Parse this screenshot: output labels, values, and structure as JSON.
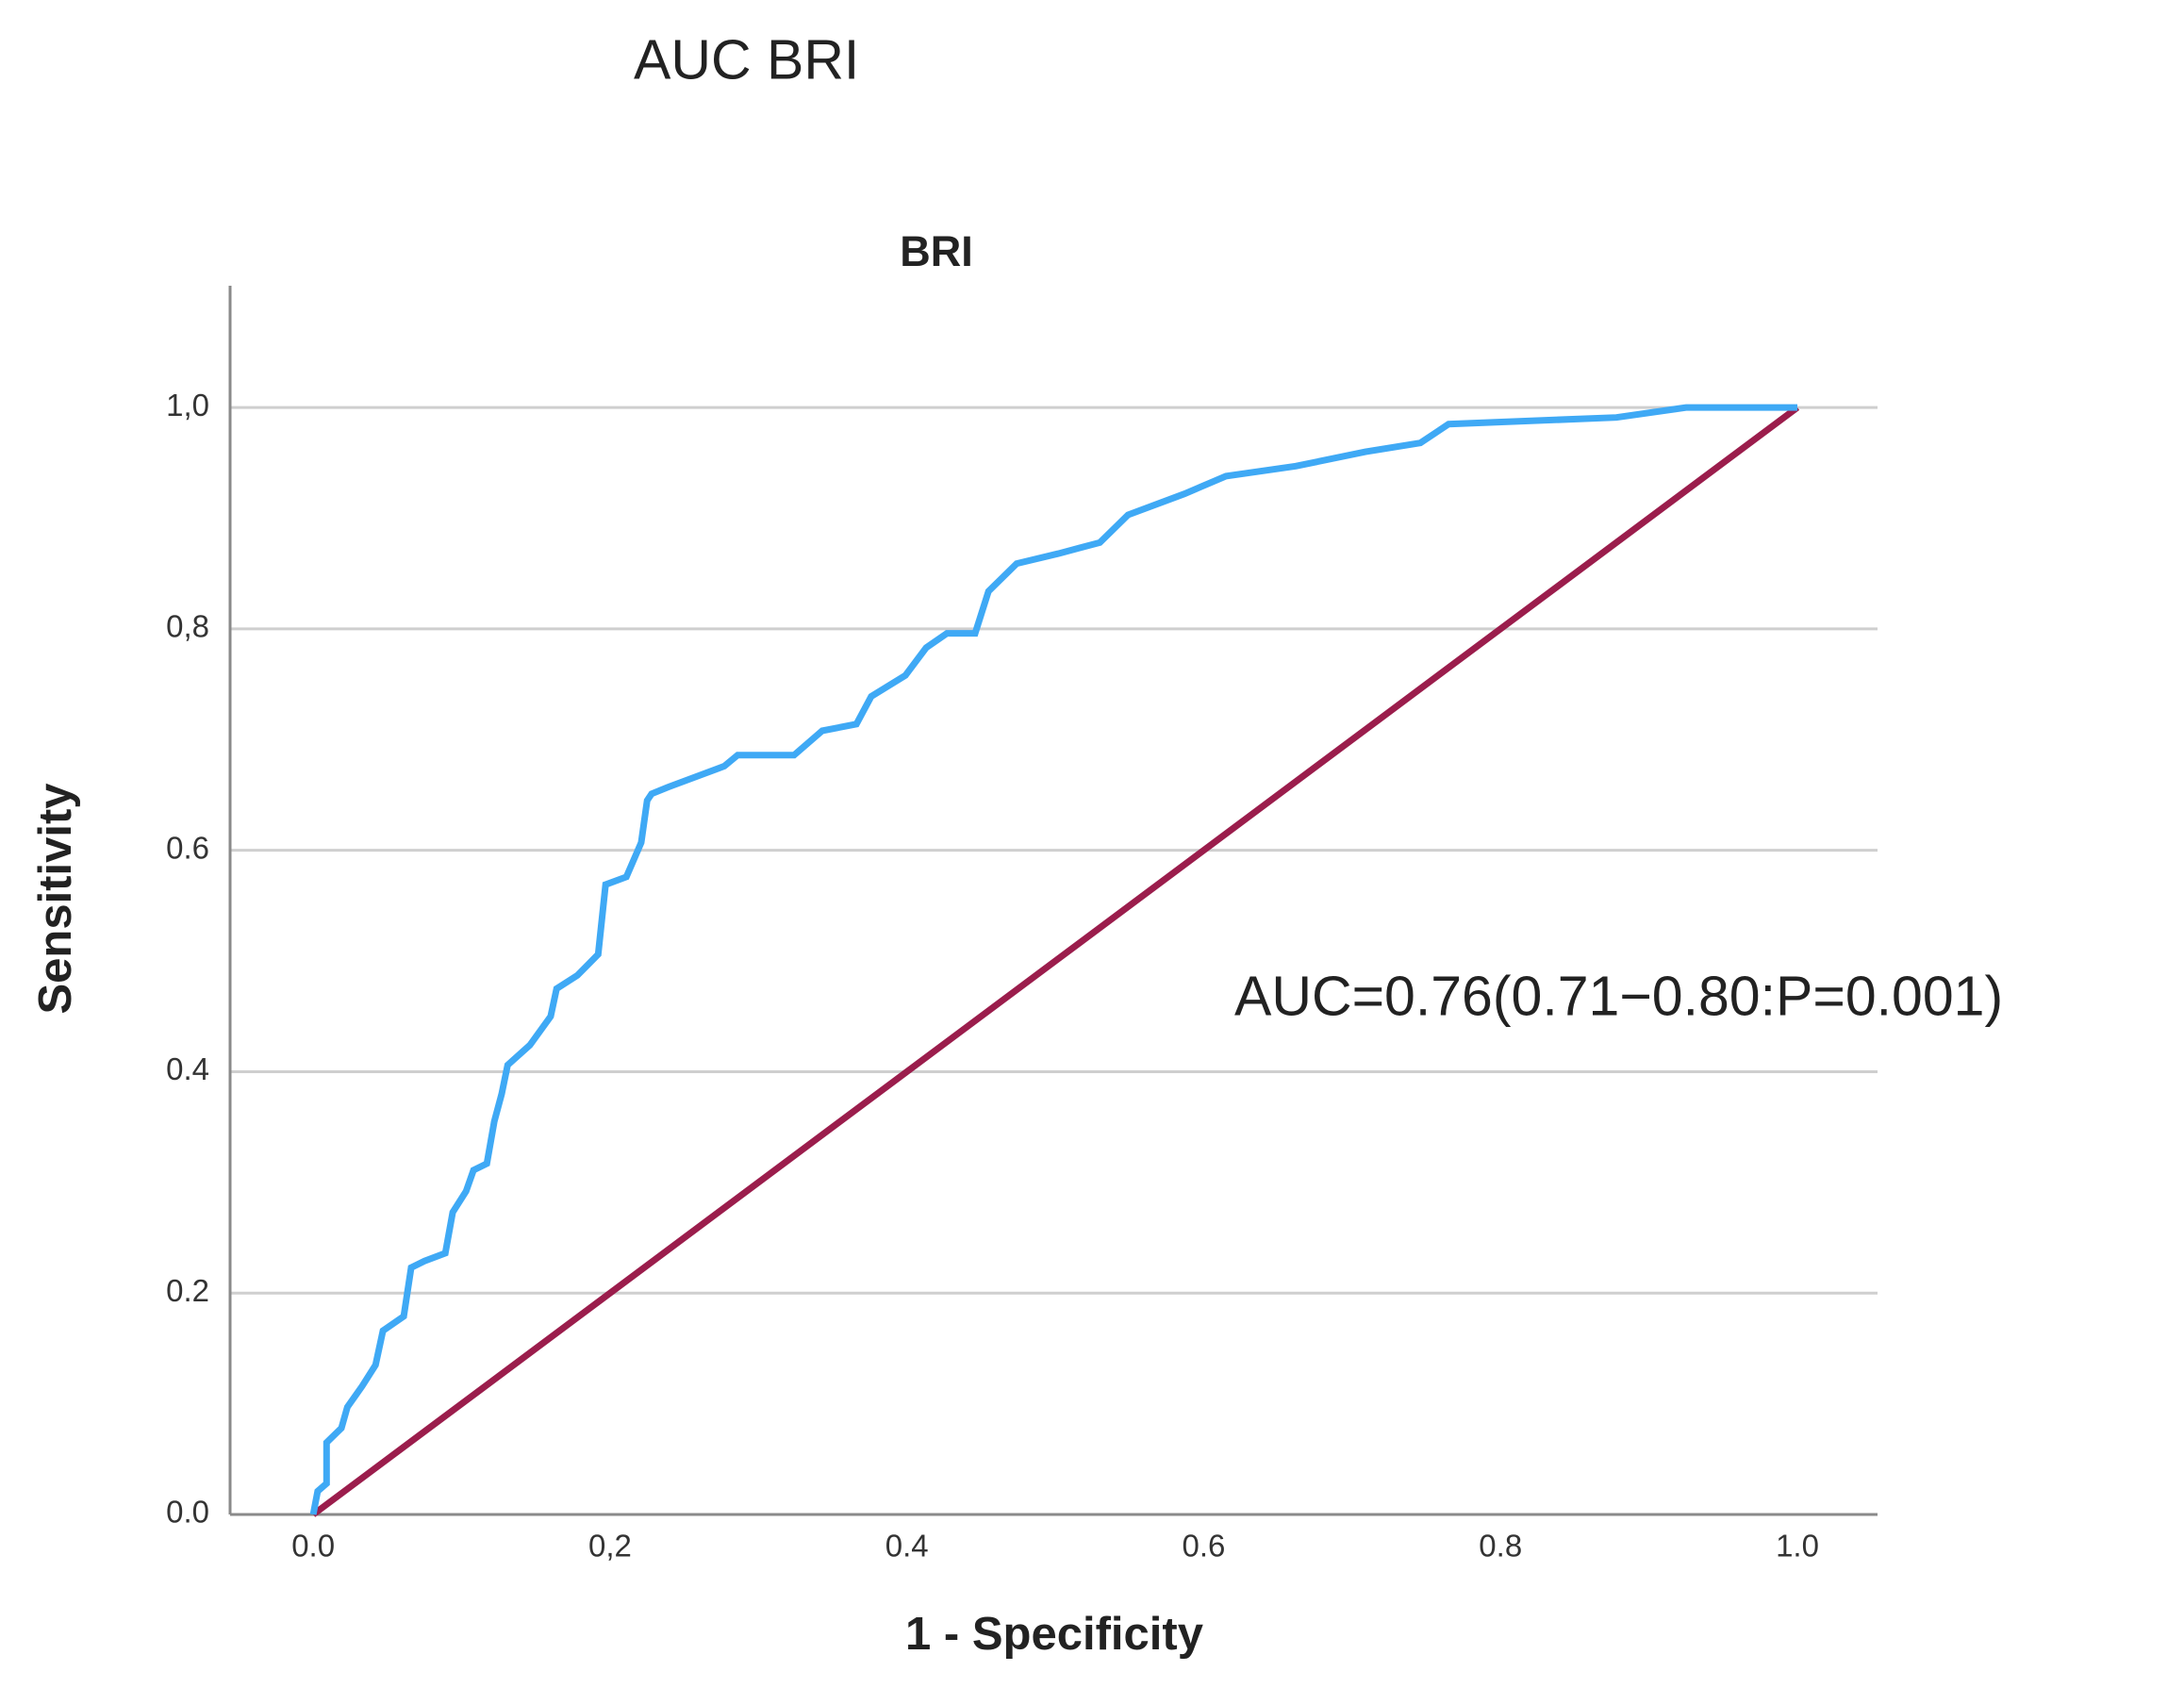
{
  "chart_data": {
    "type": "line",
    "header": "AUC BRI",
    "title": "BRI",
    "xlabel": "1 - Specificity",
    "ylabel": "Sensitivity",
    "annotation": "AUC=0.76(0.71−0.80:P=0.001)",
    "xlim": [
      -0.056,
      1.054
    ],
    "ylim": [
      0,
      1.11
    ],
    "xticks": [
      {
        "value": 0,
        "label": "0.0"
      },
      {
        "value": 0.2,
        "label": "0,2"
      },
      {
        "value": 0.4,
        "label": "0.4"
      },
      {
        "value": 0.6,
        "label": "0.6"
      },
      {
        "value": 0.8,
        "label": "0.8"
      },
      {
        "value": 1,
        "label": "1.0"
      }
    ],
    "yticks": [
      {
        "value": 0,
        "label": "0.0"
      },
      {
        "value": 0.2,
        "label": "0.2"
      },
      {
        "value": 0.4,
        "label": "0.4"
      },
      {
        "value": 0.6,
        "label": "0.6"
      },
      {
        "value": 0.8,
        "label": "0,8"
      },
      {
        "value": 1,
        "label": "1,0"
      }
    ],
    "grid": true,
    "series": [
      {
        "color": "#3fa9f5",
        "x": [
          0,
          0.003,
          0.009,
          0.009,
          0.019,
          0.023,
          0.033,
          0.042,
          0.047,
          0.061,
          0.066,
          0.075,
          0.089,
          0.094,
          0.103,
          0.108,
          0.117,
          0.122,
          0.127,
          0.131,
          0.146,
          0.16,
          0.164,
          0.178,
          0.192,
          0.197,
          0.211,
          0.221,
          0.225,
          0.228,
          0.239,
          0.277,
          0.286,
          0.324,
          0.343,
          0.366,
          0.376,
          0.399,
          0.413,
          0.427,
          0.446,
          0.455,
          0.474,
          0.502,
          0.53,
          0.549,
          0.587,
          0.615,
          0.662,
          0.709,
          0.746,
          0.765,
          0.878,
          0.925,
          1
        ],
        "values": [
          0,
          0.021,
          0.028,
          0.065,
          0.078,
          0.097,
          0.116,
          0.135,
          0.166,
          0.179,
          0.223,
          0.229,
          0.236,
          0.273,
          0.292,
          0.311,
          0.317,
          0.355,
          0.38,
          0.406,
          0.424,
          0.45,
          0.475,
          0.487,
          0.506,
          0.569,
          0.576,
          0.607,
          0.645,
          0.651,
          0.657,
          0.676,
          0.686,
          0.686,
          0.708,
          0.714,
          0.739,
          0.758,
          0.783,
          0.796,
          0.796,
          0.834,
          0.859,
          0.868,
          0.878,
          0.903,
          0.922,
          0.938,
          0.947,
          0.96,
          0.968,
          0.985,
          0.991,
          1,
          1
        ]
      },
      {
        "color": "#9b1d4c",
        "x": [
          0,
          1
        ],
        "values": [
          0,
          1
        ]
      }
    ]
  }
}
